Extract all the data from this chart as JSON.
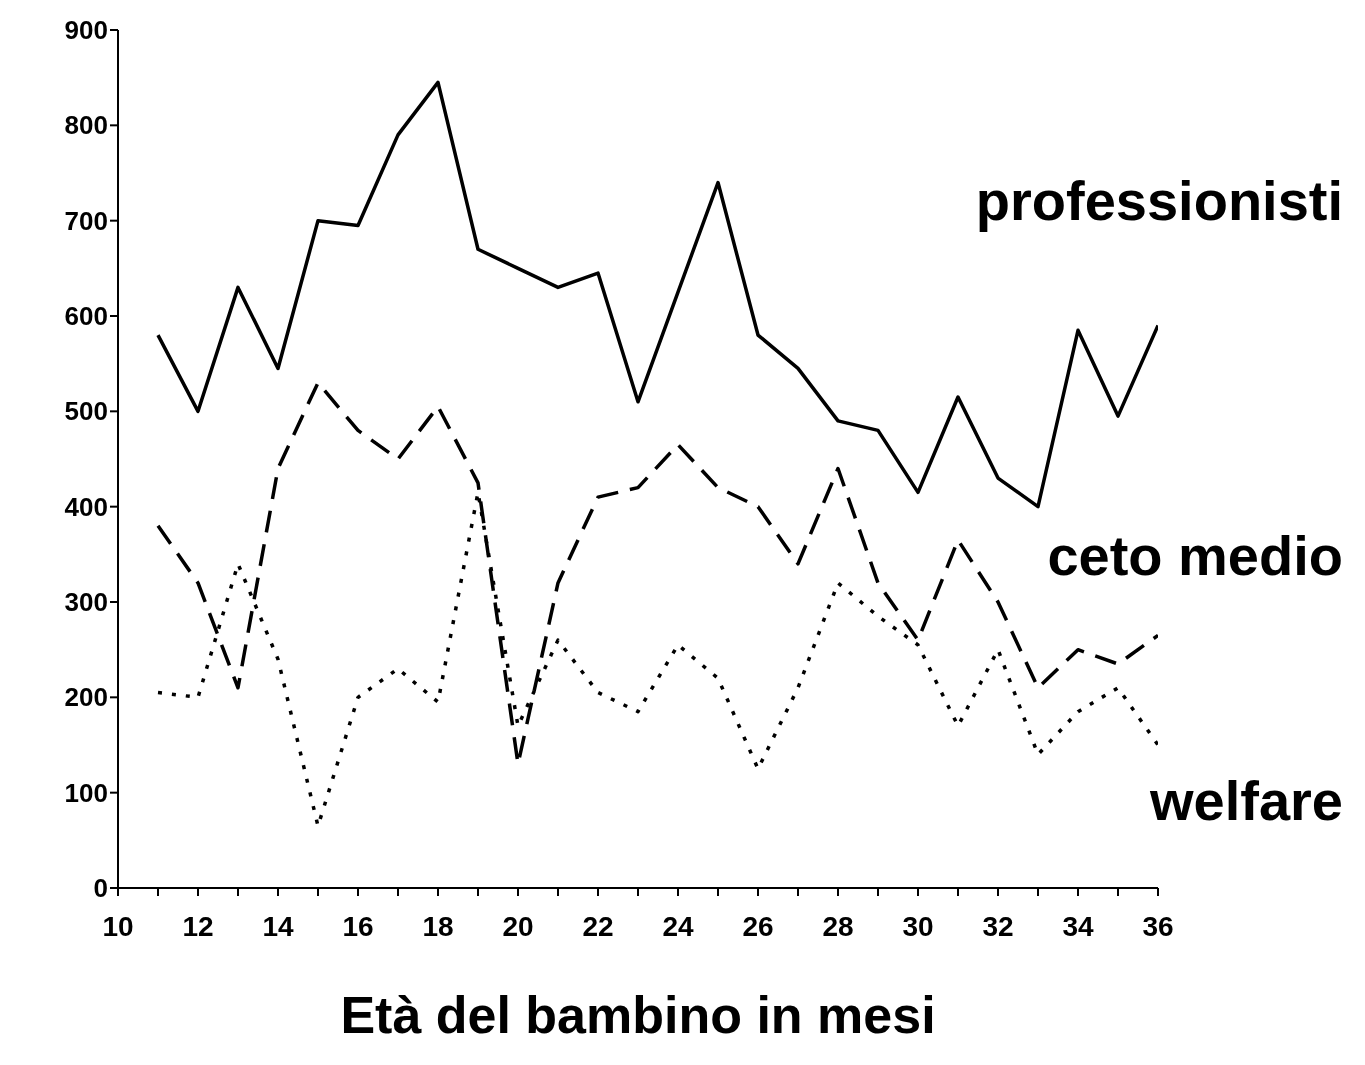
{
  "chart_data": {
    "type": "line",
    "xlabel": "Età del bambino in mesi",
    "x": [
      11,
      12,
      13,
      14,
      15,
      16,
      17,
      18,
      19,
      20,
      21,
      22,
      23,
      24,
      25,
      26,
      27,
      28,
      29,
      30,
      31,
      32,
      33,
      34,
      35,
      36
    ],
    "series": [
      {
        "name": "professionisti",
        "color": "#000000",
        "line_style": "solid",
        "values": [
          580,
          500,
          630,
          545,
          700,
          695,
          790,
          845,
          670,
          650,
          630,
          645,
          510,
          625,
          740,
          580,
          545,
          490,
          480,
          415,
          515,
          430,
          400,
          585,
          495,
          590
        ]
      },
      {
        "name": "ceto medio",
        "color": "#000000",
        "line_style": "dashed",
        "values": [
          380,
          320,
          210,
          440,
          530,
          480,
          450,
          505,
          425,
          130,
          320,
          410,
          420,
          465,
          420,
          400,
          340,
          440,
          320,
          260,
          365,
          300,
          210,
          250,
          235,
          265
        ]
      },
      {
        "name": "welfare",
        "color": "#000000",
        "line_style": "dotted",
        "values": [
          205,
          200,
          340,
          240,
          65,
          200,
          230,
          195,
          415,
          170,
          260,
          205,
          185,
          255,
          220,
          125,
          210,
          320,
          285,
          255,
          170,
          250,
          140,
          185,
          210,
          150
        ]
      }
    ],
    "xlim": [
      10,
      36
    ],
    "xticks": [
      10,
      {
        "value": 11,
        "label": null
      },
      12,
      {
        "value": 13,
        "label": null
      },
      14,
      {
        "value": 15,
        "label": null
      },
      16,
      {
        "value": 17,
        "label": null
      },
      18,
      {
        "value": 19,
        "label": null
      },
      20,
      {
        "value": 21,
        "label": null
      },
      22,
      {
        "value": 23,
        "label": null
      },
      24,
      {
        "value": 25,
        "label": null
      },
      26,
      {
        "value": 27,
        "label": null
      },
      28,
      {
        "value": 29,
        "label": null
      },
      30,
      {
        "value": 31,
        "label": null
      },
      32,
      {
        "value": 33,
        "label": null
      },
      34,
      {
        "value": 35,
        "label": null
      },
      36
    ],
    "ylim": [
      0,
      900
    ],
    "yticks": [
      0,
      100,
      200,
      300,
      400,
      500,
      600,
      700,
      800,
      900
    ],
    "grid": false,
    "legend": false,
    "marker": "none"
  }
}
